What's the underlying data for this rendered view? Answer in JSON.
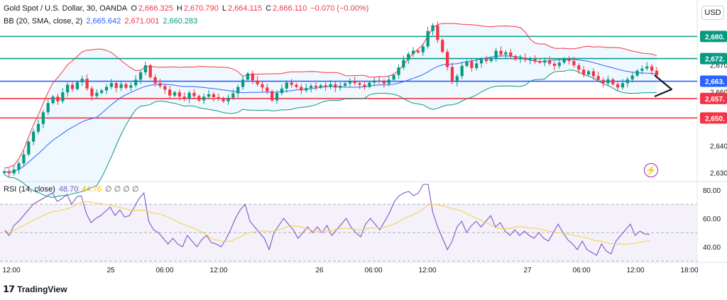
{
  "header": {
    "symbol": "Gold Spot / U.S. Dollar, 30, OANDA",
    "open_label": "O",
    "open": "2,666.325",
    "high_label": "H",
    "high": "2,670.790",
    "low_label": "L",
    "low": "2,664.115",
    "close_label": "C",
    "close": "2,666.110",
    "change": "−0.070 (−0.00%)",
    "bb_label": "BB (20, SMA, close, 2)",
    "bb_basis": "2,665.642",
    "bb_upper": "2,671.001",
    "bb_lower": "2,660.283"
  },
  "currency_button": "USD",
  "rsi_header": {
    "label": "RSI (14, close)",
    "rsi": "48.70",
    "ma": "44.76",
    "extra": "∅ ∅ ∅ ∅"
  },
  "footer": {
    "logo_text": "TradingView"
  },
  "icons": {
    "flash": "flash-icon",
    "arrow": "arrow-right-icon"
  },
  "colors": {
    "up": "#089981",
    "down": "#f23645",
    "bb_basis": "#2962ff",
    "bb_upper": "#f23645",
    "bb_lower": "#089981",
    "hline_green": "#089981",
    "hline_red": "#f23645",
    "hline_blue": "#2962ff",
    "rsi_line": "#7e57c2",
    "rsi_ma": "#f7d154",
    "rsi_band": "#ede7f6"
  },
  "chart_data": [
    {
      "type": "candlestick",
      "symbol": "XAU/USD",
      "interval": "30",
      "ylim": [
        2627,
        2694
      ],
      "y_ticks": [
        "2,680.",
        "2,672.",
        "2,670",
        "2,663.",
        "2,660",
        "2,657.",
        "2,650.",
        "2,640",
        "2,630"
      ],
      "x_ticks": [
        "12:00",
        "25",
        "06:00",
        "12:00",
        "26",
        "06:00",
        "12:00",
        "27",
        "06:00",
        "12:00",
        "18:00"
      ],
      "horizontal_levels": [
        {
          "price": 2680.5,
          "color": "green",
          "label": "2,680."
        },
        {
          "price": 2672.3,
          "color": "green",
          "label": "2,672."
        },
        {
          "price": 2663.9,
          "color": "blue",
          "label": "2,663."
        },
        {
          "price": 2657.5,
          "color": "red",
          "label": "2,657."
        },
        {
          "price": 2650.3,
          "color": "red",
          "label": "2,650."
        }
      ],
      "close_series": [
        2630.5,
        2629.8,
        2631.2,
        2633.5,
        2636.8,
        2641.5,
        2645.2,
        2648.1,
        2652.4,
        2655.8,
        2658.2,
        2656.5,
        2659.8,
        2662.6,
        2661.0,
        2663.5,
        2664.8,
        2661.2,
        2658.4,
        2659.6,
        2660.5,
        2661.8,
        2663.2,
        2661.4,
        2662.8,
        2661.5,
        2662.4,
        2664.5,
        2667.2,
        2669.8,
        2665.4,
        2663.2,
        2662.1,
        2660.8,
        2658.6,
        2659.8,
        2658.2,
        2657.4,
        2659.6,
        2658.4,
        2656.8,
        2658.2,
        2659.1,
        2658.0,
        2657.6,
        2656.5,
        2657.8,
        2659.4,
        2661.8,
        2664.5,
        2666.8,
        2664.2,
        2662.8,
        2661.6,
        2660.2,
        2656.8,
        2659.5,
        2661.2,
        2663.4,
        2662.6,
        2661.8,
        2660.5,
        2661.4,
        2662.2,
        2661.6,
        2662.4,
        2661.8,
        2662.8,
        2661.5,
        2662.2,
        2663.1,
        2664.0,
        2663.2,
        2662.6,
        2661.8,
        2663.4,
        2664.2,
        2663.8,
        2663.0,
        2664.5,
        2666.2,
        2669.0,
        2671.8,
        2674.0,
        2675.2,
        2674.6,
        2676.8,
        2682.5,
        2684.6,
        2679.2,
        2674.8,
        2669.2,
        2663.6,
        2665.8,
        2669.6,
        2671.2,
        2668.8,
        2670.5,
        2672.0,
        2671.4,
        2672.5,
        2675.2,
        2673.8,
        2674.6,
        2673.2,
        2672.0,
        2672.6,
        2671.8,
        2672.2,
        2671.4,
        2670.8,
        2671.6,
        2670.4,
        2669.6,
        2670.8,
        2672.2,
        2671.4,
        2669.8,
        2668.2,
        2666.4,
        2667.6,
        2665.8,
        2664.4,
        2663.2,
        2664.6,
        2662.8,
        2661.6,
        2663.2,
        2664.6,
        2666.0,
        2667.8,
        2668.6,
        2669.4,
        2667.8,
        2666.1
      ],
      "bollinger_bands": {
        "period": 20,
        "stddev": 2,
        "basis_last": 2665.642,
        "upper_last": 2671.001,
        "lower_last": 2660.283
      }
    },
    {
      "type": "line",
      "title": "RSI (14, close)",
      "ylim": [
        30,
        85
      ],
      "y_ticks": [
        "80.00",
        "60.00",
        "40.00"
      ],
      "band": [
        30,
        70
      ],
      "midline": 50,
      "series": [
        {
          "name": "RSI",
          "last": 48.7,
          "values": [
            52,
            48,
            55,
            58,
            62,
            66,
            70,
            72,
            74,
            76,
            78,
            72,
            74,
            77,
            70,
            75,
            76,
            64,
            57,
            60,
            62,
            65,
            68,
            62,
            66,
            61,
            62,
            68,
            74,
            78,
            58,
            52,
            50,
            46,
            42,
            46,
            42,
            40,
            48,
            44,
            40,
            45,
            48,
            43,
            42,
            40,
            45,
            52,
            60,
            66,
            70,
            58,
            54,
            50,
            46,
            38,
            50,
            55,
            60,
            56,
            52,
            46,
            50,
            54,
            50,
            54,
            50,
            55,
            48,
            52,
            56,
            60,
            54,
            50,
            47,
            56,
            60,
            56,
            52,
            58,
            64,
            72,
            76,
            78,
            79,
            76,
            78,
            84,
            84,
            64,
            54,
            46,
            38,
            44,
            54,
            58,
            50,
            55,
            58,
            54,
            58,
            62,
            54,
            57,
            51,
            48,
            52,
            48,
            51,
            48,
            46,
            50,
            46,
            44,
            50,
            56,
            50,
            45,
            42,
            38,
            44,
            38,
            36,
            34,
            42,
            37,
            35,
            44,
            48,
            52,
            56,
            48,
            51,
            49,
            48.7
          ]
        },
        {
          "name": "RSI-based MA",
          "last": 44.76
        }
      ]
    }
  ]
}
